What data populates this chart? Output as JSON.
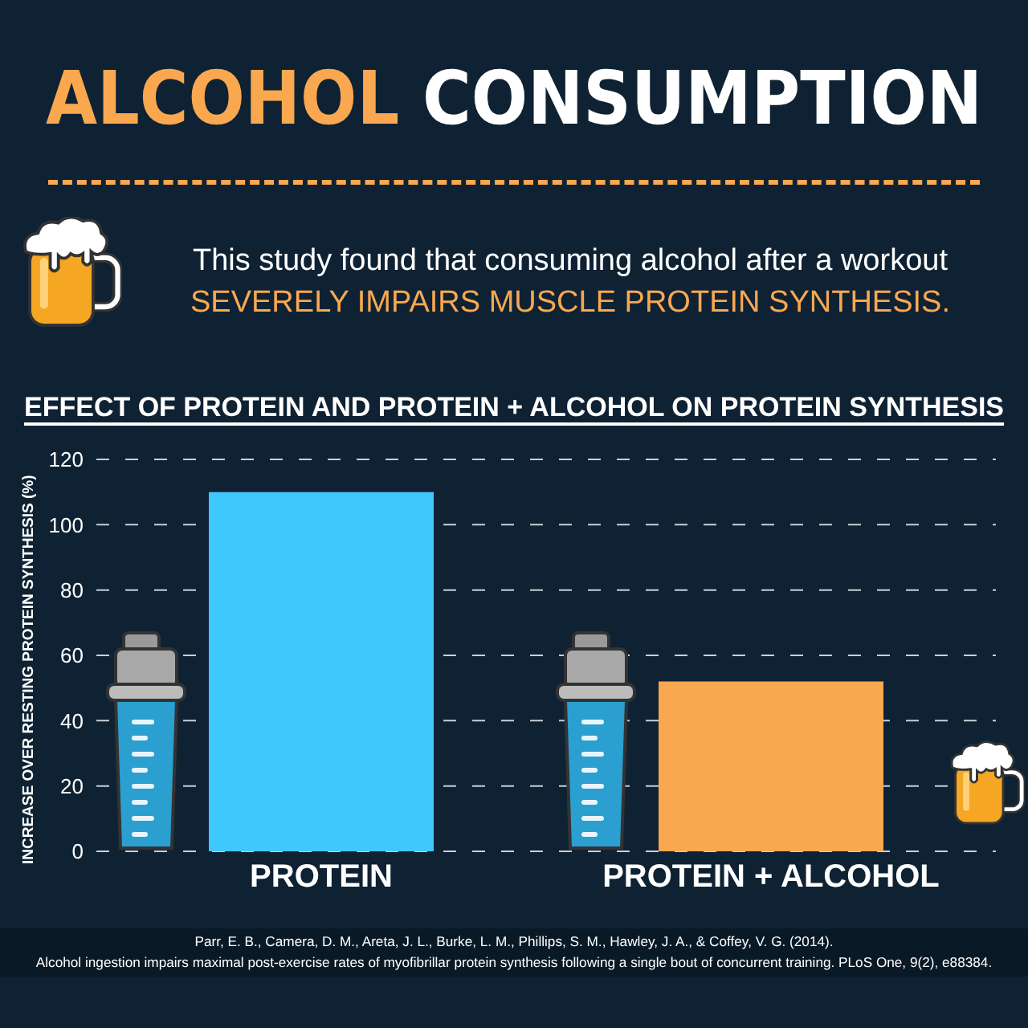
{
  "chart_data": {
    "type": "bar",
    "title": "ALCOHOL CONSUMPTION",
    "subtitle": "This study found that consuming alcohol after a workout SEVERELY IMPAIRS MUSCLE PROTEIN SYNTHESIS.",
    "annotations": [
      "EFFECT OF PROTEIN AND PROTEIN + ALCOHOL ON PROTEIN SYNTHESIS",
      "Parr, E. B., Camera, D. M., Areta, J. L., Burke, L. M., Phillips, S. M., Hawley, J. A., & Coffey, V. G. (2014).",
      "Alcohol ingestion impairs maximal post-exercise rates of myofibrillar protein synthesis following a single bout of concurrent training. PLoS One, 9(2), e88384."
    ],
    "ylabel": "INCREASE OVER RESTING PROTEIN SYNTHESIS (%)",
    "categories": [
      "PROTEIN",
      "PROTEIN + ALCOHOL"
    ],
    "values": [
      110,
      52
    ],
    "colors": [
      "#3ec8fb",
      "#f9a850"
    ],
    "ylim": [
      0,
      120
    ],
    "yticks": [
      0,
      20,
      40,
      60,
      80,
      100,
      120
    ],
    "grid": "y"
  }
}
